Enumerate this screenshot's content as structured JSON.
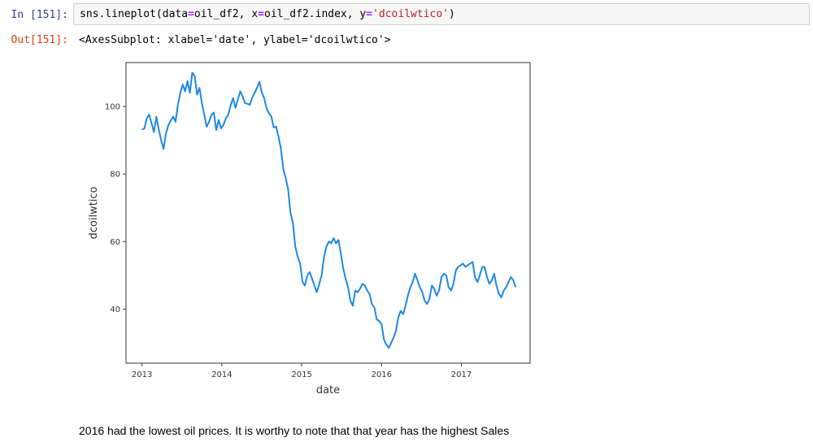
{
  "input_cell": {
    "prompt": "In [151]:",
    "code_parts": [
      {
        "text": "sns.lineplot(data",
        "cls": ""
      },
      {
        "text": "=",
        "cls": "op"
      },
      {
        "text": "oil_df2, x",
        "cls": ""
      },
      {
        "text": "=",
        "cls": "op"
      },
      {
        "text": "oil_df2.index, y",
        "cls": ""
      },
      {
        "text": "=",
        "cls": "op"
      },
      {
        "text": "'dcoilwtico'",
        "cls": "str"
      },
      {
        "text": ")",
        "cls": ""
      }
    ]
  },
  "output_cell": {
    "prompt": "Out[151]:",
    "text": "<AxesSubplot: xlabel='date', ylabel='dcoilwtico'>"
  },
  "markdown": {
    "text": "2016 had the lowest oil prices. It is worthy to note that that year has the highest Sales"
  },
  "colors": {
    "line": "#1e88e5",
    "axes": "#333333"
  },
  "chart_data": {
    "type": "line",
    "xlabel": "date",
    "ylabel": "dcoilwtico",
    "x_ticks": [
      "2013",
      "2014",
      "2015",
      "2016",
      "2017"
    ],
    "y_ticks": [
      40,
      60,
      80,
      100
    ],
    "xlim": [
      2012.8,
      2017.86
    ],
    "ylim": [
      24,
      113
    ],
    "grid": false,
    "points": [
      [
        2013.0,
        93.1
      ],
      [
        2013.03,
        93.5
      ],
      [
        2013.06,
        96.5
      ],
      [
        2013.09,
        97.6
      ],
      [
        2013.12,
        95.0
      ],
      [
        2013.15,
        92.4
      ],
      [
        2013.18,
        97.0
      ],
      [
        2013.21,
        93.2
      ],
      [
        2013.24,
        90.0
      ],
      [
        2013.27,
        87.4
      ],
      [
        2013.3,
        92.0
      ],
      [
        2013.33,
        94.5
      ],
      [
        2013.36,
        95.8
      ],
      [
        2013.39,
        97.0
      ],
      [
        2013.42,
        95.5
      ],
      [
        2013.45,
        100.5
      ],
      [
        2013.48,
        104.0
      ],
      [
        2013.51,
        106.5
      ],
      [
        2013.54,
        104.5
      ],
      [
        2013.57,
        107.5
      ],
      [
        2013.6,
        104.0
      ],
      [
        2013.63,
        110.0
      ],
      [
        2013.66,
        109.0
      ],
      [
        2013.69,
        103.5
      ],
      [
        2013.72,
        105.5
      ],
      [
        2013.75,
        101.0
      ],
      [
        2013.78,
        97.5
      ],
      [
        2013.81,
        94.0
      ],
      [
        2013.84,
        95.5
      ],
      [
        2013.87,
        97.5
      ],
      [
        2013.9,
        98.2
      ],
      [
        2013.93,
        93.0
      ],
      [
        2013.96,
        96.0
      ],
      [
        2013.99,
        93.5
      ],
      [
        2014.02,
        94.5
      ],
      [
        2014.05,
        96.5
      ],
      [
        2014.08,
        97.5
      ],
      [
        2014.11,
        100.3
      ],
      [
        2014.14,
        102.5
      ],
      [
        2014.17,
        99.6
      ],
      [
        2014.2,
        102.0
      ],
      [
        2014.23,
        104.5
      ],
      [
        2014.26,
        103.0
      ],
      [
        2014.29,
        101.0
      ],
      [
        2014.32,
        100.8
      ],
      [
        2014.35,
        100.5
      ],
      [
        2014.38,
        102.6
      ],
      [
        2014.41,
        104.0
      ],
      [
        2014.44,
        105.5
      ],
      [
        2014.47,
        107.3
      ],
      [
        2014.5,
        104.2
      ],
      [
        2014.53,
        102.5
      ],
      [
        2014.56,
        99.5
      ],
      [
        2014.59,
        98.0
      ],
      [
        2014.62,
        97.0
      ],
      [
        2014.65,
        93.8
      ],
      [
        2014.68,
        94.0
      ],
      [
        2014.71,
        91.0
      ],
      [
        2014.74,
        87.5
      ],
      [
        2014.77,
        81.5
      ],
      [
        2014.8,
        78.8
      ],
      [
        2014.83,
        75.5
      ],
      [
        2014.86,
        68.5
      ],
      [
        2014.89,
        65.5
      ],
      [
        2014.92,
        58.5
      ],
      [
        2014.95,
        55.5
      ],
      [
        2014.98,
        53.5
      ],
      [
        2015.01,
        48.0
      ],
      [
        2015.04,
        47.0
      ],
      [
        2015.07,
        50.0
      ],
      [
        2015.1,
        51.0
      ],
      [
        2015.13,
        49.0
      ],
      [
        2015.16,
        47.0
      ],
      [
        2015.19,
        45.0
      ],
      [
        2015.22,
        47.5
      ],
      [
        2015.25,
        50.0
      ],
      [
        2015.28,
        55.5
      ],
      [
        2015.31,
        58.5
      ],
      [
        2015.34,
        60.0
      ],
      [
        2015.37,
        59.5
      ],
      [
        2015.4,
        61.0
      ],
      [
        2015.43,
        59.5
      ],
      [
        2015.46,
        60.5
      ],
      [
        2015.49,
        56.5
      ],
      [
        2015.52,
        52.0
      ],
      [
        2015.55,
        49.0
      ],
      [
        2015.58,
        46.5
      ],
      [
        2015.61,
        42.5
      ],
      [
        2015.64,
        41.0
      ],
      [
        2015.67,
        45.5
      ],
      [
        2015.7,
        45.0
      ],
      [
        2015.73,
        46.0
      ],
      [
        2015.76,
        47.5
      ],
      [
        2015.79,
        47.0
      ],
      [
        2015.82,
        45.5
      ],
      [
        2015.85,
        44.5
      ],
      [
        2015.88,
        41.5
      ],
      [
        2015.91,
        40.5
      ],
      [
        2015.94,
        37.0
      ],
      [
        2015.97,
        36.5
      ],
      [
        2016.0,
        35.5
      ],
      [
        2016.03,
        31.0
      ],
      [
        2016.06,
        29.5
      ],
      [
        2016.09,
        28.5
      ],
      [
        2016.12,
        30.0
      ],
      [
        2016.15,
        31.5
      ],
      [
        2016.18,
        33.5
      ],
      [
        2016.21,
        37.5
      ],
      [
        2016.24,
        39.5
      ],
      [
        2016.27,
        38.5
      ],
      [
        2016.3,
        41.0
      ],
      [
        2016.33,
        44.0
      ],
      [
        2016.36,
        46.5
      ],
      [
        2016.39,
        48.0
      ],
      [
        2016.42,
        50.5
      ],
      [
        2016.45,
        48.5
      ],
      [
        2016.48,
        46.5
      ],
      [
        2016.51,
        45.0
      ],
      [
        2016.54,
        42.5
      ],
      [
        2016.57,
        41.5
      ],
      [
        2016.6,
        43.0
      ],
      [
        2016.63,
        47.0
      ],
      [
        2016.66,
        46.0
      ],
      [
        2016.69,
        44.0
      ],
      [
        2016.72,
        45.5
      ],
      [
        2016.75,
        49.5
      ],
      [
        2016.78,
        50.5
      ],
      [
        2016.81,
        50.0
      ],
      [
        2016.84,
        46.5
      ],
      [
        2016.87,
        45.5
      ],
      [
        2016.9,
        47.5
      ],
      [
        2016.93,
        51.5
      ],
      [
        2016.96,
        52.5
      ],
      [
        2016.99,
        53.0
      ],
      [
        2017.02,
        53.5
      ],
      [
        2017.05,
        52.5
      ],
      [
        2017.08,
        53.0
      ],
      [
        2017.11,
        53.5
      ],
      [
        2017.14,
        54.0
      ],
      [
        2017.17,
        49.5
      ],
      [
        2017.2,
        48.0
      ],
      [
        2017.23,
        50.0
      ],
      [
        2017.26,
        52.5
      ],
      [
        2017.29,
        52.5
      ],
      [
        2017.32,
        49.5
      ],
      [
        2017.35,
        47.5
      ],
      [
        2017.38,
        48.5
      ],
      [
        2017.41,
        50.5
      ],
      [
        2017.44,
        47.0
      ],
      [
        2017.47,
        44.5
      ],
      [
        2017.5,
        43.5
      ],
      [
        2017.53,
        45.5
      ],
      [
        2017.56,
        46.5
      ],
      [
        2017.59,
        48.0
      ],
      [
        2017.62,
        49.5
      ],
      [
        2017.65,
        48.5
      ],
      [
        2017.68,
        46.5
      ]
    ]
  }
}
